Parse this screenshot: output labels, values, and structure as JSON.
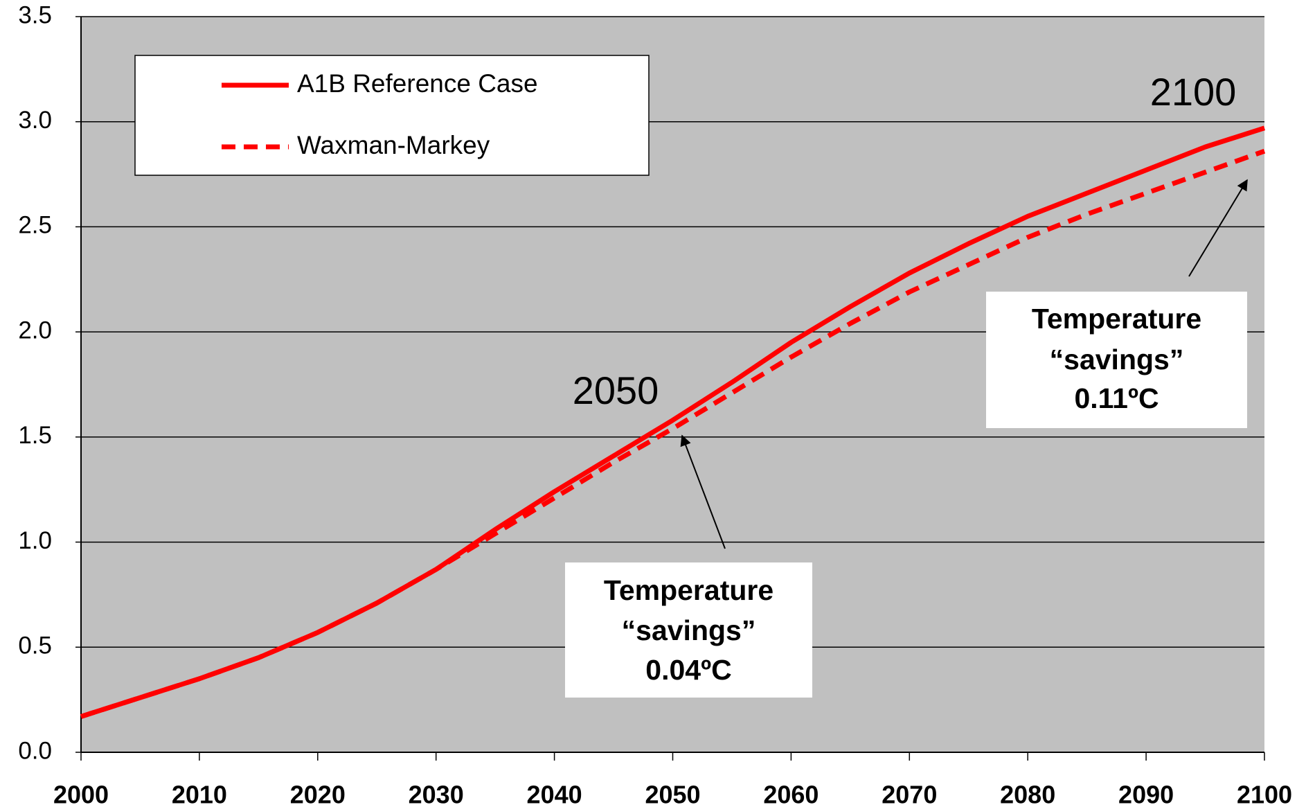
{
  "chart_data": {
    "type": "line",
    "x": [
      2000,
      2005,
      2010,
      2015,
      2020,
      2025,
      2030,
      2035,
      2040,
      2045,
      2050,
      2055,
      2060,
      2065,
      2070,
      2075,
      2080,
      2085,
      2090,
      2095,
      2100
    ],
    "series": [
      {
        "name": "A1B Reference Case",
        "color": "#ff0000",
        "style": "solid",
        "values": [
          0.17,
          0.26,
          0.35,
          0.45,
          0.57,
          0.71,
          0.87,
          1.06,
          1.24,
          1.41,
          1.58,
          1.76,
          1.95,
          2.12,
          2.28,
          2.42,
          2.55,
          2.66,
          2.77,
          2.88,
          2.97
        ]
      },
      {
        "name": "Waxman-Markey",
        "color": "#ff0000",
        "style": "dashed",
        "values": [
          0.17,
          0.26,
          0.35,
          0.45,
          0.57,
          0.71,
          0.87,
          1.04,
          1.21,
          1.38,
          1.54,
          1.71,
          1.88,
          2.04,
          2.19,
          2.32,
          2.45,
          2.56,
          2.66,
          2.76,
          2.86
        ]
      }
    ],
    "xlim": [
      2000,
      2100
    ],
    "xticks": [
      2000,
      2010,
      2020,
      2030,
      2040,
      2050,
      2060,
      2070,
      2080,
      2090,
      2100
    ],
    "ylim": [
      0,
      3.5
    ],
    "yticks": [
      {
        "value": 0,
        "label": "0.0"
      },
      {
        "value": 0.5,
        "label": "0.5"
      },
      {
        "value": 1,
        "label": "1.0"
      },
      {
        "value": 1.5,
        "label": "1.5"
      },
      {
        "value": 2,
        "label": "2.0"
      },
      {
        "value": 2.5,
        "label": "2.5"
      },
      {
        "value": 3,
        "label": "3.0"
      },
      {
        "value": 3.5,
        "label": "3.5"
      }
    ],
    "grid": true,
    "legend": "upper left",
    "annotations": [
      {
        "text": "2050"
      },
      {
        "text": "2100"
      },
      {
        "lines": [
          "Temperature",
          "“savings”",
          "0.04ºC"
        ]
      },
      {
        "lines": [
          "Temperature",
          "“savings”",
          "0.11ºC"
        ]
      }
    ]
  }
}
